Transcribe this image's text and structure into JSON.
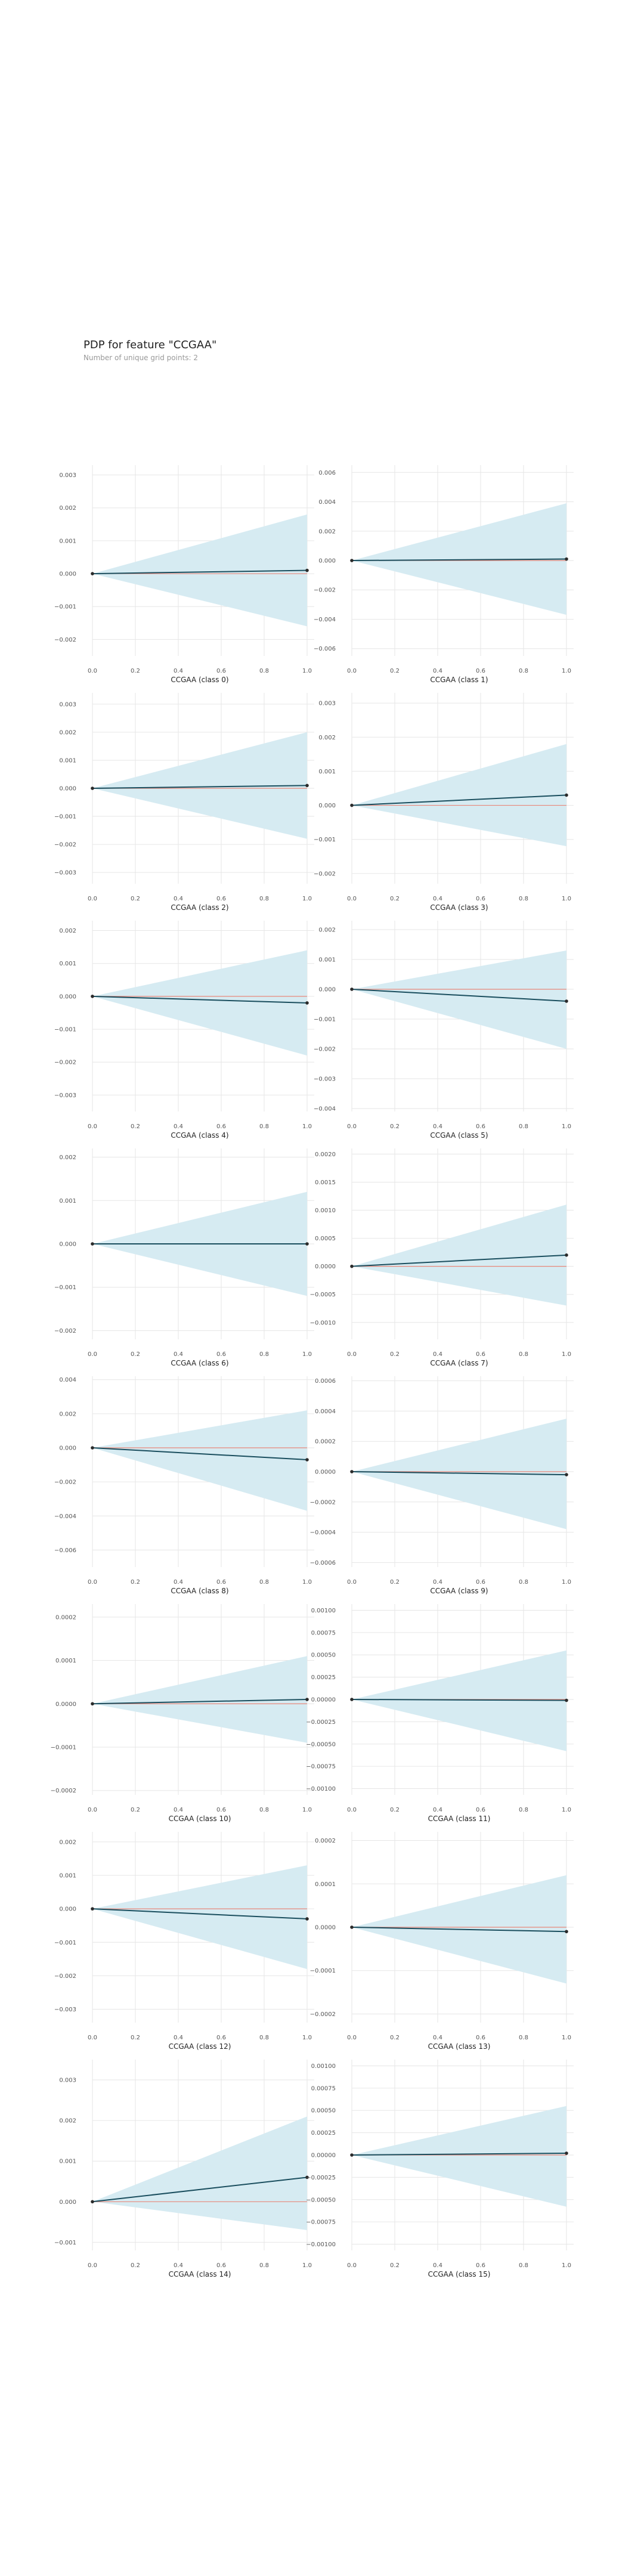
{
  "header": {
    "title": "PDP for feature \"CCGAA\"",
    "subtitle": "Number of unique grid points: 2"
  },
  "colors": {
    "band": "#d6ebf2",
    "line": "#1a4e5e",
    "reference": "#e8877a",
    "grid": "#e6e6e6",
    "point": "#2b2b2b"
  },
  "chart_data": [
    {
      "type": "line",
      "xlabel": "CCGAA (class 0)",
      "x": [
        0,
        1
      ],
      "y": [
        0,
        0.0001
      ],
      "band_upper": [
        0,
        0.0018
      ],
      "band_lower": [
        0,
        -0.0016
      ],
      "ylim": [
        -0.0025,
        0.0033
      ],
      "yticks": [
        "0.003",
        "0.002",
        "0.001",
        "0.000",
        "−0.001",
        "−0.002"
      ],
      "ytick_values": [
        0.003,
        0.002,
        0.001,
        0,
        -0.001,
        -0.002
      ],
      "xticks": [
        "0.0",
        "0.2",
        "0.4",
        "0.6",
        "0.8",
        "1.0"
      ]
    },
    {
      "type": "line",
      "xlabel": "CCGAA (class 1)",
      "x": [
        0,
        1
      ],
      "y": [
        0,
        0.0001
      ],
      "band_upper": [
        0,
        0.0039
      ],
      "band_lower": [
        0,
        -0.0037
      ],
      "ylim": [
        -0.0065,
        0.0065
      ],
      "yticks": [
        "0.006",
        "0.004",
        "0.002",
        "0.000",
        "−0.002",
        "−0.004",
        "−0.006"
      ],
      "ytick_values": [
        0.006,
        0.004,
        0.002,
        0,
        -0.002,
        -0.004,
        -0.006
      ],
      "xticks": [
        "0.0",
        "0.2",
        "0.4",
        "0.6",
        "0.8",
        "1.0"
      ]
    },
    {
      "type": "line",
      "xlabel": "CCGAA (class 2)",
      "x": [
        0,
        1
      ],
      "y": [
        0,
        0.0001
      ],
      "band_upper": [
        0,
        0.002
      ],
      "band_lower": [
        0,
        -0.0018
      ],
      "ylim": [
        -0.0034,
        0.0034
      ],
      "yticks": [
        "0.003",
        "0.002",
        "0.001",
        "0.000",
        "−0.001",
        "−0.002",
        "−0.003"
      ],
      "ytick_values": [
        0.003,
        0.002,
        0.001,
        0,
        -0.001,
        -0.002,
        -0.003
      ],
      "xticks": [
        "0.0",
        "0.2",
        "0.4",
        "0.6",
        "0.8",
        "1.0"
      ]
    },
    {
      "type": "line",
      "xlabel": "CCGAA (class 3)",
      "x": [
        0,
        1
      ],
      "y": [
        0,
        0.0003
      ],
      "band_upper": [
        0,
        0.0018
      ],
      "band_lower": [
        0,
        -0.0012
      ],
      "ylim": [
        -0.0023,
        0.0033
      ],
      "yticks": [
        "0.003",
        "0.002",
        "0.001",
        "0.000",
        "−0.001",
        "−0.002"
      ],
      "ytick_values": [
        0.003,
        0.002,
        0.001,
        0,
        -0.001,
        -0.002
      ],
      "xticks": [
        "0.0",
        "0.2",
        "0.4",
        "0.6",
        "0.8",
        "1.0"
      ]
    },
    {
      "type": "line",
      "xlabel": "CCGAA (class 4)",
      "x": [
        0,
        1
      ],
      "y": [
        0,
        -0.0002
      ],
      "band_upper": [
        0,
        0.0014
      ],
      "band_lower": [
        0,
        -0.0018
      ],
      "ylim": [
        -0.0035,
        0.0023
      ],
      "yticks": [
        "0.002",
        "0.001",
        "0.000",
        "−0.001",
        "−0.002",
        "−0.003"
      ],
      "ytick_values": [
        0.002,
        0.001,
        0,
        -0.001,
        -0.002,
        -0.003
      ],
      "xticks": [
        "0.0",
        "0.2",
        "0.4",
        "0.6",
        "0.8",
        "1.0"
      ]
    },
    {
      "type": "line",
      "xlabel": "CCGAA (class 5)",
      "x": [
        0,
        1
      ],
      "y": [
        0,
        -0.0004
      ],
      "band_upper": [
        0,
        0.0013
      ],
      "band_lower": [
        0,
        -0.002
      ],
      "ylim": [
        -0.0041,
        0.0023
      ],
      "yticks": [
        "0.002",
        "0.001",
        "0.000",
        "−0.001",
        "−0.002",
        "−0.003",
        "−0.004"
      ],
      "ytick_values": [
        0.002,
        0.001,
        0,
        -0.001,
        -0.002,
        -0.003,
        -0.004
      ],
      "xticks": [
        "0.0",
        "0.2",
        "0.4",
        "0.6",
        "0.8",
        "1.0"
      ]
    },
    {
      "type": "line",
      "xlabel": "CCGAA (class 6)",
      "x": [
        0,
        1
      ],
      "y": [
        0,
        0
      ],
      "band_upper": [
        0,
        0.0012
      ],
      "band_lower": [
        0,
        -0.0012
      ],
      "ylim": [
        -0.0022,
        0.0022
      ],
      "yticks": [
        "0.002",
        "0.001",
        "0.000",
        "−0.001",
        "−0.002"
      ],
      "ytick_values": [
        0.002,
        0.001,
        0,
        -0.001,
        -0.002
      ],
      "xticks": [
        "0.0",
        "0.2",
        "0.4",
        "0.6",
        "0.8",
        "1.0"
      ]
    },
    {
      "type": "line",
      "xlabel": "CCGAA (class 7)",
      "x": [
        0,
        1
      ],
      "y": [
        0,
        0.0002
      ],
      "band_upper": [
        0,
        0.0011
      ],
      "band_lower": [
        0,
        -0.0007
      ],
      "ylim": [
        -0.0013,
        0.0021
      ],
      "yticks": [
        "0.0020",
        "0.0015",
        "0.0010",
        "0.0005",
        "0.0000",
        "−0.0005",
        "−0.0010"
      ],
      "ytick_values": [
        0.002,
        0.0015,
        0.001,
        0.0005,
        0,
        -0.0005,
        -0.001
      ],
      "xticks": [
        "0.0",
        "0.2",
        "0.4",
        "0.6",
        "0.8",
        "1.0"
      ]
    },
    {
      "type": "line",
      "xlabel": "CCGAA (class 8)",
      "x": [
        0,
        1
      ],
      "y": [
        0,
        -0.0007
      ],
      "band_upper": [
        0,
        0.0022
      ],
      "band_lower": [
        0,
        -0.0037
      ],
      "ylim": [
        -0.007,
        0.0042
      ],
      "yticks": [
        "0.004",
        "0.002",
        "0.000",
        "−0.002",
        "−0.004",
        "−0.006"
      ],
      "ytick_values": [
        0.004,
        0.002,
        0,
        -0.002,
        -0.004,
        -0.006
      ],
      "xticks": [
        "0.0",
        "0.2",
        "0.4",
        "0.6",
        "0.8",
        "1.0"
      ]
    },
    {
      "type": "line",
      "xlabel": "CCGAA (class 9)",
      "x": [
        0,
        1
      ],
      "y": [
        0,
        -2e-05
      ],
      "band_upper": [
        0,
        0.00035
      ],
      "band_lower": [
        0,
        -0.00038
      ],
      "ylim": [
        -0.00063,
        0.00063
      ],
      "yticks": [
        "0.0006",
        "0.0004",
        "0.0002",
        "0.0000",
        "−0.0002",
        "−0.0004",
        "−0.0006"
      ],
      "ytick_values": [
        0.0006,
        0.0004,
        0.0002,
        0,
        -0.0002,
        -0.0004,
        -0.0006
      ],
      "xticks": [
        "0.0",
        "0.2",
        "0.4",
        "0.6",
        "0.8",
        "1.0"
      ]
    },
    {
      "type": "line",
      "xlabel": "CCGAA (class 10)",
      "x": [
        0,
        1
      ],
      "y": [
        0,
        1e-05
      ],
      "band_upper": [
        0,
        0.00011
      ],
      "band_lower": [
        0,
        -9e-05
      ],
      "ylim": [
        -0.00021,
        0.00023
      ],
      "yticks": [
        "0.0002",
        "0.0001",
        "0.0000",
        "−0.0001",
        "−0.0002"
      ],
      "ytick_values": [
        0.0002,
        0.0001,
        0,
        -0.0001,
        -0.0002
      ],
      "xticks": [
        "0.0",
        "0.2",
        "0.4",
        "0.6",
        "0.8",
        "1.0"
      ]
    },
    {
      "type": "line",
      "xlabel": "CCGAA (class 11)",
      "x": [
        0,
        1
      ],
      "y": [
        0,
        -1e-05
      ],
      "band_upper": [
        0,
        0.00055
      ],
      "band_lower": [
        0,
        -0.00058
      ],
      "ylim": [
        -0.00107,
        0.00107
      ],
      "yticks": [
        "0.00100",
        "0.00075",
        "0.00050",
        "0.00025",
        "0.00000",
        "−0.00025",
        "−0.00050",
        "−0.00075",
        "−0.00100"
      ],
      "ytick_values": [
        0.001,
        0.00075,
        0.0005,
        0.00025,
        0,
        -0.00025,
        -0.0005,
        -0.00075,
        -0.001
      ],
      "xticks": [
        "0.0",
        "0.2",
        "0.4",
        "0.6",
        "0.8",
        "1.0"
      ]
    },
    {
      "type": "line",
      "xlabel": "CCGAA (class 12)",
      "x": [
        0,
        1
      ],
      "y": [
        0,
        -0.0003
      ],
      "band_upper": [
        0,
        0.0013
      ],
      "band_lower": [
        0,
        -0.0018
      ],
      "ylim": [
        -0.0034,
        0.0023
      ],
      "yticks": [
        "0.002",
        "0.001",
        "0.000",
        "−0.001",
        "−0.002",
        "−0.003"
      ],
      "ytick_values": [
        0.002,
        0.001,
        0,
        -0.001,
        -0.002,
        -0.003
      ],
      "xticks": [
        "0.0",
        "0.2",
        "0.4",
        "0.6",
        "0.8",
        "1.0"
      ]
    },
    {
      "type": "line",
      "xlabel": "CCGAA (class 13)",
      "x": [
        0,
        1
      ],
      "y": [
        0,
        -1e-05
      ],
      "band_upper": [
        0,
        0.00012
      ],
      "band_lower": [
        0,
        -0.00013
      ],
      "ylim": [
        -0.00022,
        0.00022
      ],
      "yticks": [
        "0.0002",
        "0.0001",
        "0.0000",
        "−0.0001",
        "−0.0002"
      ],
      "ytick_values": [
        0.0002,
        0.0001,
        0,
        -0.0001,
        -0.0002
      ],
      "xticks": [
        "0.0",
        "0.2",
        "0.4",
        "0.6",
        "0.8",
        "1.0"
      ]
    },
    {
      "type": "line",
      "xlabel": "CCGAA (class 14)",
      "x": [
        0,
        1
      ],
      "y": [
        0,
        0.0006
      ],
      "band_upper": [
        0,
        0.0021
      ],
      "band_lower": [
        0,
        -0.0007
      ],
      "ylim": [
        -0.0012,
        0.0035
      ],
      "yticks": [
        "0.003",
        "0.002",
        "0.001",
        "0.000",
        "−0.001"
      ],
      "ytick_values": [
        0.003,
        0.002,
        0.001,
        0,
        -0.001
      ],
      "xticks": [
        "0.0",
        "0.2",
        "0.4",
        "0.6",
        "0.8",
        "1.0"
      ]
    },
    {
      "type": "line",
      "xlabel": "CCGAA (class 15)",
      "x": [
        0,
        1
      ],
      "y": [
        0,
        2e-05
      ],
      "band_upper": [
        0,
        0.00055
      ],
      "band_lower": [
        0,
        -0.00058
      ],
      "ylim": [
        -0.00107,
        0.00107
      ],
      "yticks": [
        "0.00100",
        "0.00075",
        "0.00050",
        "0.00025",
        "0.00000",
        "−0.00025",
        "−0.00050",
        "−0.00075",
        "−0.00100"
      ],
      "ytick_values": [
        0.001,
        0.00075,
        0.0005,
        0.00025,
        0,
        -0.00025,
        -0.0005,
        -0.00075,
        -0.001
      ],
      "xticks": [
        "0.0",
        "0.2",
        "0.4",
        "0.6",
        "0.8",
        "1.0"
      ]
    }
  ]
}
